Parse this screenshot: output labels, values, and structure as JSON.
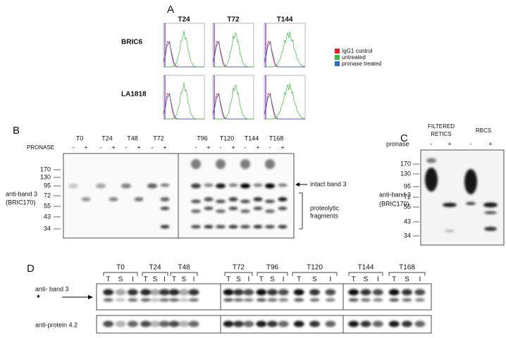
{
  "panel_a": {
    "label": "A",
    "columns": [
      "T24",
      "T72",
      "T144"
    ],
    "rows": [
      "BRIC6",
      "LA1818"
    ],
    "legend": [
      {
        "name": "IgG1 control",
        "color": "#e8202a"
      },
      {
        "name": "untreated",
        "color": "#3cb83c"
      },
      {
        "name": "pronase treated",
        "color": "#2a6cc8"
      }
    ]
  },
  "panel_b": {
    "label": "B",
    "treatment": "PRONASE",
    "timepoints": [
      "T0",
      "T24",
      "T48",
      "T72",
      "T96",
      "T120",
      "T144",
      "T168"
    ],
    "signs": [
      "-",
      "+"
    ],
    "markers": [
      170,
      130,
      95,
      72,
      55,
      43,
      34
    ],
    "antibody": [
      "anti-band 3",
      "(BRIC170)"
    ],
    "intact": "intact band 3",
    "fragments": [
      "proteolytic",
      "fragments"
    ]
  },
  "panel_c": {
    "label": "C",
    "groups": [
      [
        "FILTERED",
        "RETICS"
      ],
      [
        "RBCS"
      ]
    ],
    "treatment": "pronase",
    "signs": [
      "-",
      "+"
    ],
    "markers": [
      170,
      130,
      95,
      72,
      55,
      43,
      34
    ],
    "antibody": [
      "anti-band 3",
      "(BRIC170)"
    ]
  },
  "panel_d": {
    "label": "D",
    "timepoints": [
      "T0",
      "T24",
      "T48",
      "T72",
      "T96",
      "T120",
      "T144",
      "T168"
    ],
    "lanes": [
      "T",
      "S",
      "I"
    ],
    "blots": [
      "anti- band 3",
      "anti-protein 4.2"
    ],
    "star": "*"
  }
}
